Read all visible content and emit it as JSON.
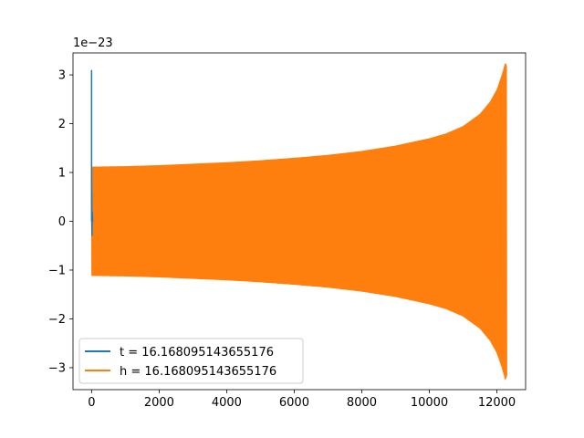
{
  "chart_data": {
    "type": "line",
    "title": "",
    "xlabel": "",
    "ylabel": "",
    "y_scale_label": "1e−23",
    "xlim": [
      -550,
      12850
    ],
    "ylim": [
      -3.45,
      3.45
    ],
    "xticks": [
      0,
      2000,
      4000,
      6000,
      8000,
      10000,
      12000
    ],
    "yticks": [
      -3,
      -2,
      -1,
      0,
      1,
      2,
      3
    ],
    "xtick_labels": [
      "0",
      "2000",
      "4000",
      "6000",
      "8000",
      "10000",
      "12000"
    ],
    "ytick_labels": [
      "−3",
      "−2",
      "−1",
      "0",
      "1",
      "2",
      "3"
    ],
    "grid": false,
    "legend_position": "lower-left",
    "series": [
      {
        "name": "t = 16.168095143655176",
        "color": "#1f77b4",
        "description_points": {
          "x": [
            0,
            0,
            0,
            5,
            10,
            20,
            30
          ],
          "y": [
            0.0,
            3.1,
            0.8,
            0.5,
            -0.3,
            0.2,
            0.0
          ]
        }
      },
      {
        "name": "h = 16.168095143655176",
        "color": "#ff7f0e",
        "envelope": {
          "x": [
            0,
            1000,
            2000,
            3000,
            4000,
            5000,
            6000,
            7000,
            8000,
            9000,
            10000,
            10500,
            11000,
            11500,
            11800,
            12000,
            12150,
            12250,
            12290
          ],
          "amplitude": [
            1.12,
            1.13,
            1.15,
            1.18,
            1.21,
            1.25,
            1.3,
            1.36,
            1.44,
            1.55,
            1.7,
            1.8,
            1.95,
            2.2,
            2.45,
            2.7,
            3.0,
            3.25,
            3.18
          ]
        }
      }
    ]
  }
}
